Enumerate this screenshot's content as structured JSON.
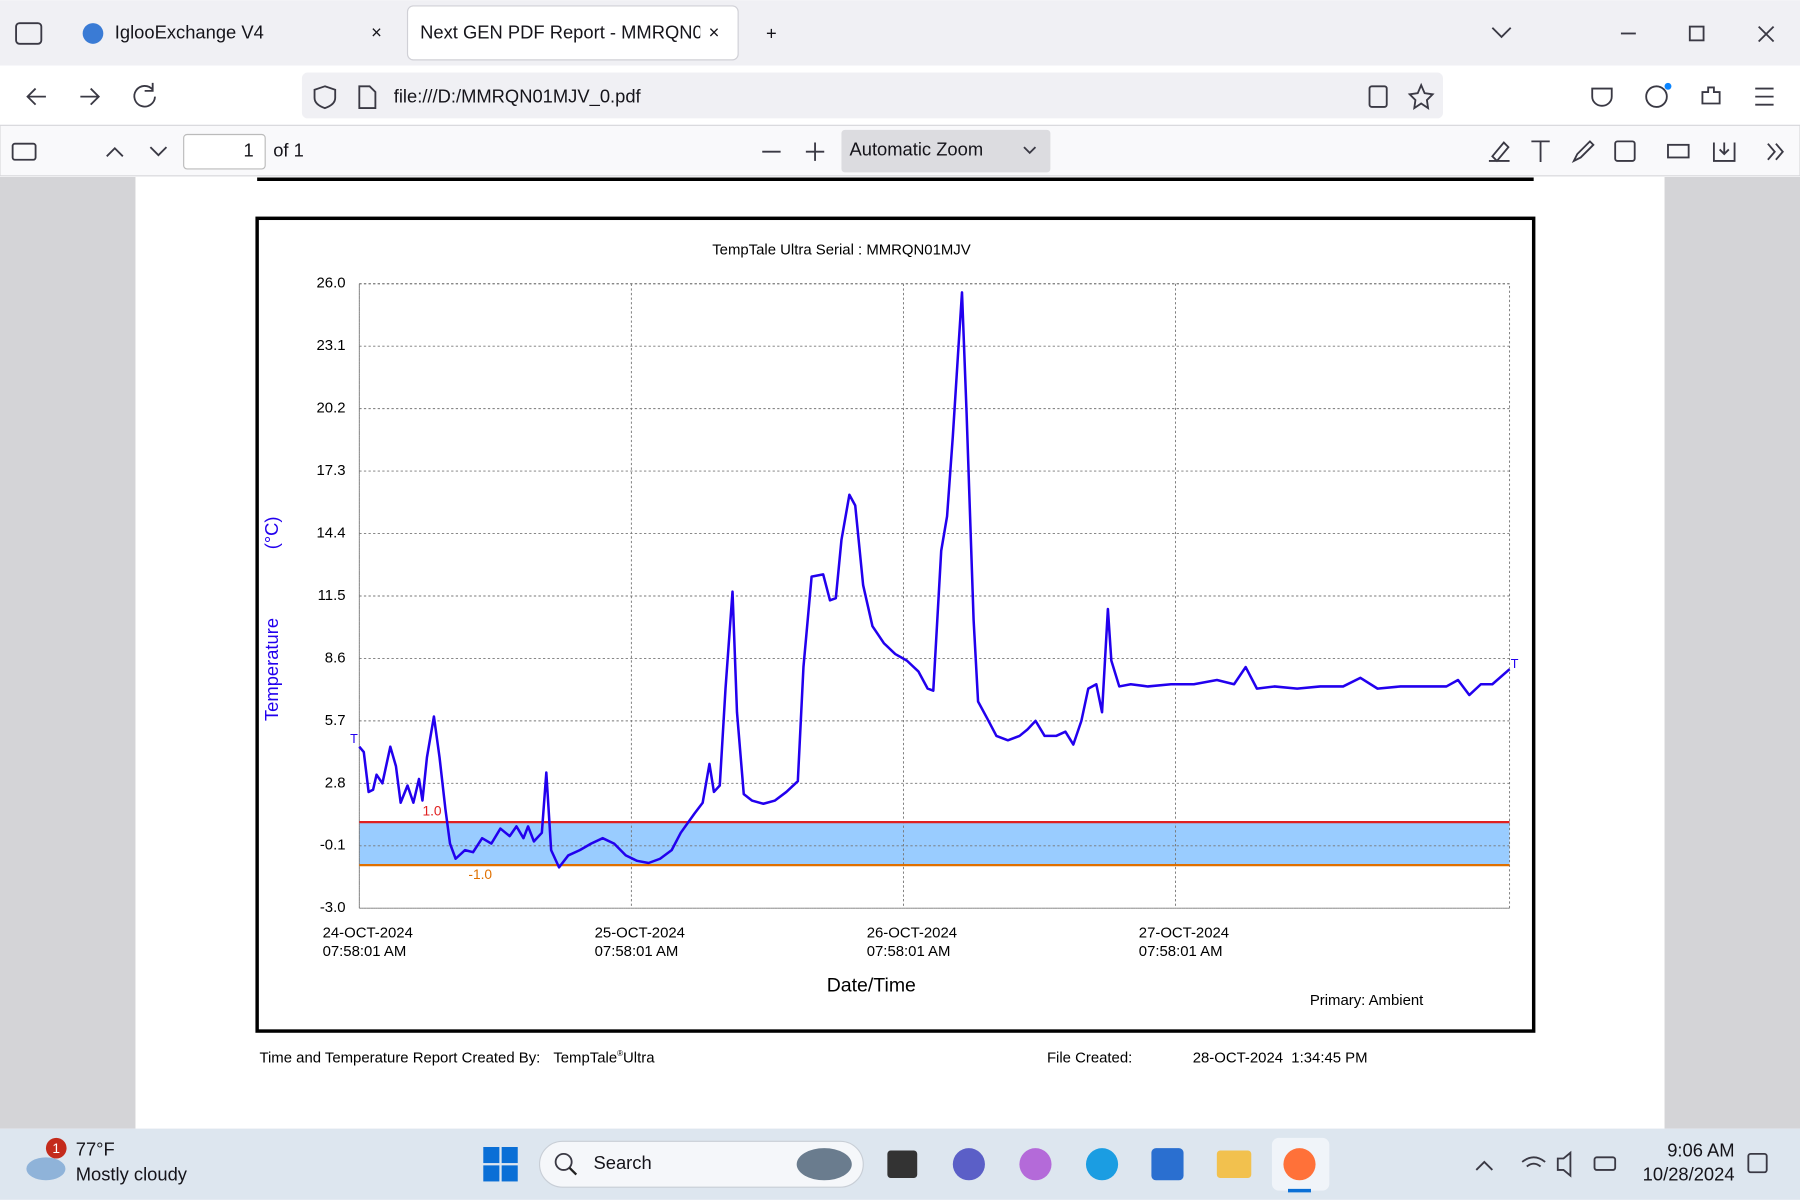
{
  "browser": {
    "tabs": [
      "IglooExchange V4",
      "Next GEN PDF Report - MMRQN01MJV_0.pdf"
    ],
    "url": "file:///D:/MMRQN01MJV_0.pdf",
    "page_number": "1",
    "page_count": "of 1",
    "zoom": "Automatic Zoom"
  },
  "chart_data": {
    "type": "line",
    "title": "TempTale Ultra  Serial : MMRQN01MJV",
    "y_label": "Temperature",
    "y_unit": "(°C)",
    "x_label": "Date/Time",
    "note": "Primary: Ambient",
    "start_marker": "T",
    "end_marker": "T",
    "xlim": [
      "2024-10-24T07:58:01",
      "2024-10-28T13:26:00"
    ],
    "xticks": [
      {
        "value": "2024-10-24T07:58:01",
        "label": [
          "24-OCT-2024",
          "07:58:01 AM"
        ]
      },
      {
        "value": "2024-10-25T07:58:01",
        "label": [
          "25-OCT-2024",
          "07:58:01 AM"
        ]
      },
      {
        "value": "2024-10-26T07:58:01",
        "label": [
          "26-OCT-2024",
          "07:58:01 AM"
        ]
      },
      {
        "value": "2024-10-27T07:58:01",
        "label": [
          "27-OCT-2024",
          "07:58:01 AM"
        ]
      }
    ],
    "ylim": [
      -3,
      26
    ],
    "yticks": [
      {
        "value": 26,
        "label": "26.0"
      },
      23.1,
      20.2,
      17.3,
      14.4,
      11.5,
      8.6,
      5.7,
      2.8,
      -0.1,
      {
        "value": -3,
        "label": "-3.0"
      }
    ],
    "grid": true,
    "limits": [
      {
        "value": 1,
        "label": "1.0",
        "color": "#e02020"
      },
      {
        "value": -1,
        "label": "-1.0",
        "color": "#e07000"
      }
    ],
    "band_color": "#99ccff",
    "series": [
      {
        "name": "Ambient",
        "color": "#2200ee",
        "x": [
          "2024-10-24T07:58",
          "2024-10-24T08:22",
          "2024-10-24T08:47",
          "2024-10-24T09:11",
          "2024-10-24T09:29",
          "2024-10-24T10:00",
          "2024-10-24T10:42",
          "2024-10-24T11:12",
          "2024-10-24T11:37",
          "2024-10-24T12:13",
          "2024-10-24T12:44",
          "2024-10-24T13:14",
          "2024-10-24T13:32",
          "2024-10-24T13:56",
          "2024-10-24T14:33",
          "2024-10-24T15:03",
          "2024-10-24T15:34",
          "2024-10-24T15:58",
          "2024-10-24T16:28",
          "2024-10-24T17:17",
          "2024-10-24T18:00",
          "2024-10-24T18:48",
          "2024-10-24T19:37",
          "2024-10-24T20:25",
          "2024-10-24T21:14",
          "2024-10-24T21:50",
          "2024-10-24T22:27",
          "2024-10-24T22:51",
          "2024-10-24T23:22",
          "2024-10-25T00:04",
          "2024-10-25T00:28",
          "2024-10-25T00:53",
          "2024-10-25T01:35",
          "2024-10-25T02:24",
          "2024-10-25T03:25",
          "2024-10-25T04:25",
          "2024-10-25T05:26",
          "2024-10-25T06:27",
          "2024-10-25T07:28",
          "2024-10-25T08:28",
          "2024-10-25T09:29",
          "2024-10-25T10:30",
          "2024-10-25T11:31",
          "2024-10-25T12:19",
          "2024-10-25T13:32",
          "2024-10-25T14:15",
          "2024-10-25T14:51",
          "2024-10-25T15:15",
          "2024-10-25T15:46",
          "2024-10-25T16:16",
          "2024-10-25T16:53",
          "2024-10-25T17:17",
          "2024-10-25T17:53",
          "2024-10-25T18:36",
          "2024-10-25T19:37",
          "2024-10-25T20:38",
          "2024-10-25T21:38",
          "2024-10-25T22:39",
          "2024-10-25T23:09",
          "2024-10-25T23:52",
          "2024-10-26T00:53",
          "2024-10-26T01:29",
          "2024-10-26T02:00",
          "2024-10-26T02:30",
          "2024-10-26T03:12",
          "2024-10-26T03:43",
          "2024-10-26T04:25",
          "2024-10-26T05:14",
          "2024-10-26T06:15",
          "2024-10-26T07:15",
          "2024-10-26T08:16",
          "2024-10-26T09:17",
          "2024-10-26T10:06",
          "2024-10-26T10:36",
          "2024-10-26T11:18",
          "2024-10-26T11:49",
          "2024-10-26T12:19",
          "2024-10-26T12:50",
          "2024-10-26T13:08",
          "2024-10-26T13:32",
          "2024-10-26T14:09",
          "2024-10-26T14:33",
          "2024-10-26T15:22",
          "2024-10-26T16:10",
          "2024-10-26T17:11",
          "2024-10-26T18:12",
          "2024-10-26T18:54",
          "2024-10-26T19:37",
          "2024-10-26T20:25",
          "2024-10-26T21:26",
          "2024-10-26T22:15",
          "2024-10-26T22:57",
          "2024-10-26T23:40",
          "2024-10-27T00:16",
          "2024-10-27T00:59",
          "2024-10-27T01:29",
          "2024-10-27T02:00",
          "2024-10-27T02:18",
          "2024-10-27T03:00",
          "2024-10-27T04:01",
          "2024-10-27T05:32",
          "2024-10-27T07:34",
          "2024-10-27T09:35",
          "2024-10-27T11:37",
          "2024-10-27T13:08",
          "2024-10-27T14:09",
          "2024-10-27T15:09",
          "2024-10-27T16:41",
          "2024-10-27T18:42",
          "2024-10-27T20:44",
          "2024-10-27T22:45",
          "2024-10-28T00:16",
          "2024-10-28T01:47",
          "2024-10-28T03:49",
          "2024-10-28T05:50",
          "2024-10-28T07:52",
          "2024-10-28T08:53",
          "2024-10-28T09:53",
          "2024-10-28T10:54",
          "2024-10-28T11:55",
          "2024-10-28T13:26"
        ],
        "values": [
          4.5,
          4.25,
          2.4,
          2.5,
          3.2,
          2.8,
          4.5,
          3.6,
          1.9,
          2.7,
          1.9,
          3.0,
          2.0,
          4.0,
          5.9,
          4.0,
          1.6,
          0.0,
          -0.7,
          -0.3,
          -0.4,
          0.25,
          0.0,
          0.7,
          0.35,
          0.8,
          0.25,
          0.8,
          0.1,
          0.5,
          3.3,
          -0.3,
          -1.1,
          -0.55,
          -0.3,
          0.0,
          0.25,
          0.0,
          -0.55,
          -0.8,
          -0.9,
          -0.7,
          -0.3,
          0.5,
          1.4,
          1.9,
          3.7,
          2.4,
          2.7,
          7.2,
          11.7,
          6.1,
          2.3,
          2.0,
          1.85,
          2.0,
          2.4,
          2.9,
          8.2,
          12.4,
          12.5,
          11.3,
          11.4,
          14.1,
          16.2,
          15.7,
          12.0,
          10.1,
          9.3,
          8.8,
          8.5,
          8.0,
          7.2,
          7.1,
          13.6,
          15.2,
          18.9,
          23.2,
          25.6,
          20.0,
          10.4,
          6.6,
          5.8,
          5.0,
          4.8,
          5.0,
          5.3,
          5.7,
          5.0,
          5.0,
          5.2,
          4.6,
          5.7,
          7.2,
          7.4,
          6.1,
          10.9,
          8.5,
          7.3,
          7.4,
          7.3,
          7.4,
          7.4,
          7.6,
          7.4,
          8.2,
          7.2,
          7.3,
          7.2,
          7.3,
          7.3,
          7.7,
          7.2,
          7.3,
          7.3,
          7.3,
          7.6,
          6.9,
          7.4,
          7.4,
          8.1
        ]
      }
    ]
  },
  "footer": {
    "created_by": "Time and Temperature Report Created By:",
    "product": "TempTale",
    "product_mark": "®",
    "product_suffix": "Ultra",
    "file_created_label": "File Created:",
    "file_created": "28-OCT-2024  1:34:45 PM"
  },
  "taskbar": {
    "weather_badge": "1",
    "temperature": "77°F",
    "weather": "Mostly cloudy",
    "search": "Search",
    "time": "9:06 AM",
    "date": "10/28/2024"
  }
}
